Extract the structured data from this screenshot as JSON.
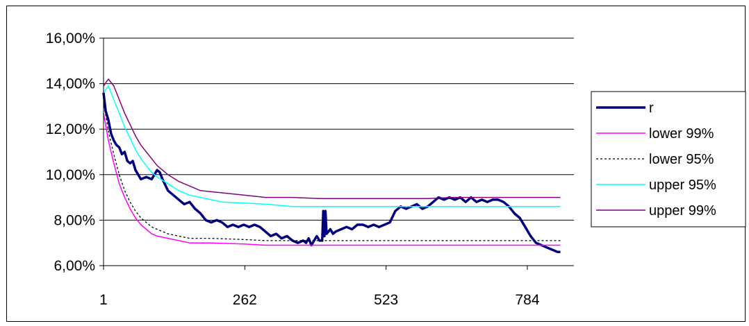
{
  "chart_data": {
    "type": "line",
    "title": "",
    "xlabel": "",
    "ylabel": "",
    "x_ticks": [
      "1",
      "262",
      "523",
      "784"
    ],
    "x_tick_values": [
      1,
      262,
      523,
      784
    ],
    "xlim": [
      1,
      870
    ],
    "y_ticks": [
      "6,00%",
      "8,00%",
      "10,00%",
      "12,00%",
      "14,00%",
      "16,00%"
    ],
    "y_tick_values": [
      6,
      8,
      10,
      12,
      14,
      16
    ],
    "ylim": [
      6,
      16
    ],
    "grid": "horizontal",
    "legend_position": "right",
    "series": [
      {
        "name": "r",
        "color": "#000080",
        "width": 3.5,
        "dash": "",
        "points": [
          [
            1,
            13.6
          ],
          [
            5,
            12.8
          ],
          [
            10,
            12.4
          ],
          [
            15,
            11.8
          ],
          [
            20,
            11.5
          ],
          [
            25,
            11.3
          ],
          [
            30,
            11.2
          ],
          [
            35,
            10.9
          ],
          [
            40,
            11.0
          ],
          [
            45,
            10.6
          ],
          [
            50,
            10.5
          ],
          [
            55,
            10.6
          ],
          [
            60,
            10.2
          ],
          [
            65,
            10.0
          ],
          [
            70,
            9.8
          ],
          [
            80,
            9.9
          ],
          [
            90,
            9.8
          ],
          [
            95,
            10.0
          ],
          [
            100,
            10.2
          ],
          [
            105,
            10.1
          ],
          [
            110,
            9.8
          ],
          [
            120,
            9.3
          ],
          [
            130,
            9.1
          ],
          [
            140,
            8.9
          ],
          [
            150,
            8.7
          ],
          [
            160,
            8.8
          ],
          [
            170,
            8.5
          ],
          [
            180,
            8.3
          ],
          [
            190,
            8.0
          ],
          [
            200,
            7.9
          ],
          [
            210,
            8.0
          ],
          [
            220,
            7.9
          ],
          [
            230,
            7.7
          ],
          [
            240,
            7.8
          ],
          [
            250,
            7.7
          ],
          [
            260,
            7.8
          ],
          [
            270,
            7.7
          ],
          [
            280,
            7.8
          ],
          [
            290,
            7.7
          ],
          [
            300,
            7.5
          ],
          [
            310,
            7.3
          ],
          [
            320,
            7.4
          ],
          [
            330,
            7.2
          ],
          [
            340,
            7.3
          ],
          [
            350,
            7.1
          ],
          [
            360,
            7.0
          ],
          [
            370,
            7.1
          ],
          [
            375,
            7.0
          ],
          [
            380,
            7.2
          ],
          [
            385,
            6.9
          ],
          [
            390,
            7.1
          ],
          [
            395,
            7.3
          ],
          [
            400,
            7.1
          ],
          [
            405,
            7.1
          ],
          [
            407,
            8.4
          ],
          [
            409,
            7.3
          ],
          [
            411,
            8.4
          ],
          [
            413,
            7.4
          ],
          [
            420,
            7.6
          ],
          [
            425,
            7.4
          ],
          [
            430,
            7.5
          ],
          [
            440,
            7.6
          ],
          [
            450,
            7.7
          ],
          [
            460,
            7.6
          ],
          [
            470,
            7.8
          ],
          [
            480,
            7.8
          ],
          [
            490,
            7.7
          ],
          [
            500,
            7.8
          ],
          [
            510,
            7.7
          ],
          [
            520,
            7.8
          ],
          [
            530,
            7.9
          ],
          [
            540,
            8.4
          ],
          [
            550,
            8.6
          ],
          [
            560,
            8.5
          ],
          [
            570,
            8.6
          ],
          [
            580,
            8.7
          ],
          [
            590,
            8.5
          ],
          [
            600,
            8.6
          ],
          [
            610,
            8.8
          ],
          [
            620,
            9.0
          ],
          [
            630,
            8.9
          ],
          [
            640,
            9.0
          ],
          [
            650,
            8.9
          ],
          [
            660,
            9.0
          ],
          [
            670,
            8.8
          ],
          [
            680,
            9.0
          ],
          [
            690,
            8.8
          ],
          [
            700,
            8.9
          ],
          [
            710,
            8.8
          ],
          [
            720,
            8.9
          ],
          [
            730,
            8.9
          ],
          [
            740,
            8.8
          ],
          [
            750,
            8.6
          ],
          [
            760,
            8.3
          ],
          [
            770,
            8.1
          ],
          [
            780,
            7.7
          ],
          [
            790,
            7.3
          ],
          [
            800,
            7.0
          ],
          [
            810,
            6.9
          ],
          [
            820,
            6.8
          ],
          [
            830,
            6.7
          ],
          [
            840,
            6.6
          ],
          [
            845,
            6.6
          ]
        ]
      },
      {
        "name": "lower 99%",
        "color": "#ff00ff",
        "width": 1.5,
        "dash": "",
        "points": [
          [
            1,
            12.7
          ],
          [
            10,
            11.5
          ],
          [
            20,
            10.5
          ],
          [
            30,
            9.6
          ],
          [
            40,
            9.0
          ],
          [
            50,
            8.5
          ],
          [
            60,
            8.1
          ],
          [
            70,
            7.8
          ],
          [
            80,
            7.6
          ],
          [
            90,
            7.4
          ],
          [
            100,
            7.3
          ],
          [
            120,
            7.2
          ],
          [
            140,
            7.1
          ],
          [
            160,
            7.0
          ],
          [
            200,
            7.0
          ],
          [
            260,
            6.95
          ],
          [
            300,
            6.9
          ],
          [
            350,
            6.9
          ],
          [
            400,
            6.9
          ],
          [
            450,
            6.9
          ],
          [
            500,
            6.9
          ],
          [
            550,
            6.9
          ],
          [
            600,
            6.9
          ],
          [
            650,
            6.9
          ],
          [
            700,
            6.9
          ],
          [
            750,
            6.9
          ],
          [
            800,
            6.9
          ],
          [
            845,
            6.9
          ]
        ]
      },
      {
        "name": "lower 95%",
        "color": "#000000",
        "width": 1.3,
        "dash": "3,3",
        "points": [
          [
            1,
            13.2
          ],
          [
            10,
            11.9
          ],
          [
            20,
            10.9
          ],
          [
            30,
            10.0
          ],
          [
            40,
            9.3
          ],
          [
            50,
            8.8
          ],
          [
            60,
            8.4
          ],
          [
            70,
            8.1
          ],
          [
            80,
            7.9
          ],
          [
            90,
            7.7
          ],
          [
            100,
            7.6
          ],
          [
            120,
            7.4
          ],
          [
            140,
            7.3
          ],
          [
            160,
            7.2
          ],
          [
            200,
            7.2
          ],
          [
            260,
            7.15
          ],
          [
            300,
            7.1
          ],
          [
            350,
            7.1
          ],
          [
            400,
            7.1
          ],
          [
            450,
            7.1
          ],
          [
            500,
            7.1
          ],
          [
            550,
            7.1
          ],
          [
            600,
            7.1
          ],
          [
            650,
            7.1
          ],
          [
            700,
            7.1
          ],
          [
            750,
            7.1
          ],
          [
            800,
            7.1
          ],
          [
            845,
            7.1
          ]
        ]
      },
      {
        "name": "upper 95%",
        "color": "#00ffff",
        "width": 1.5,
        "dash": "",
        "points": [
          [
            1,
            13.6
          ],
          [
            10,
            13.9
          ],
          [
            20,
            13.3
          ],
          [
            30,
            12.7
          ],
          [
            40,
            12.1
          ],
          [
            50,
            11.6
          ],
          [
            60,
            11.1
          ],
          [
            70,
            10.7
          ],
          [
            80,
            10.4
          ],
          [
            90,
            10.1
          ],
          [
            100,
            9.9
          ],
          [
            120,
            9.6
          ],
          [
            140,
            9.3
          ],
          [
            160,
            9.1
          ],
          [
            180,
            9.0
          ],
          [
            200,
            8.9
          ],
          [
            220,
            8.8
          ],
          [
            260,
            8.75
          ],
          [
            300,
            8.7
          ],
          [
            350,
            8.6
          ],
          [
            400,
            8.6
          ],
          [
            450,
            8.6
          ],
          [
            500,
            8.6
          ],
          [
            550,
            8.6
          ],
          [
            600,
            8.6
          ],
          [
            650,
            8.6
          ],
          [
            700,
            8.6
          ],
          [
            750,
            8.6
          ],
          [
            800,
            8.6
          ],
          [
            845,
            8.6
          ]
        ]
      },
      {
        "name": "upper 99%",
        "color": "#800080",
        "width": 1.5,
        "dash": "",
        "points": [
          [
            1,
            13.9
          ],
          [
            10,
            14.2
          ],
          [
            20,
            13.9
          ],
          [
            30,
            13.3
          ],
          [
            40,
            12.7
          ],
          [
            50,
            12.2
          ],
          [
            60,
            11.7
          ],
          [
            70,
            11.3
          ],
          [
            80,
            11.0
          ],
          [
            90,
            10.7
          ],
          [
            100,
            10.4
          ],
          [
            120,
            10.0
          ],
          [
            140,
            9.7
          ],
          [
            160,
            9.5
          ],
          [
            180,
            9.3
          ],
          [
            200,
            9.25
          ],
          [
            220,
            9.2
          ],
          [
            260,
            9.1
          ],
          [
            300,
            9.0
          ],
          [
            350,
            9.0
          ],
          [
            400,
            8.95
          ],
          [
            450,
            8.95
          ],
          [
            500,
            8.95
          ],
          [
            550,
            8.95
          ],
          [
            600,
            8.95
          ],
          [
            650,
            9.0
          ],
          [
            700,
            9.0
          ],
          [
            750,
            9.0
          ],
          [
            800,
            9.0
          ],
          [
            845,
            9.0
          ]
        ]
      }
    ]
  }
}
